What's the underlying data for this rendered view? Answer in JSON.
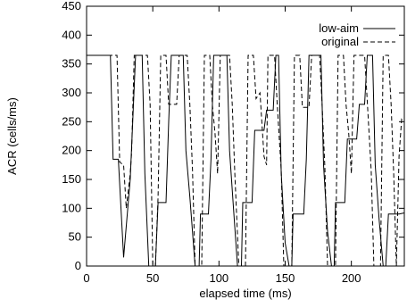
{
  "chart_data": {
    "type": "line",
    "title": "",
    "xlabel": "elapsed time (ms)",
    "ylabel": "ACR (cells/ms)",
    "xlim": [
      0,
      240
    ],
    "ylim": [
      0,
      450
    ],
    "xticks": [
      0,
      50,
      100,
      150,
      200
    ],
    "yticks": [
      0,
      50,
      100,
      150,
      200,
      250,
      300,
      350,
      400,
      450
    ],
    "grid": false,
    "legend_position": "top-right",
    "series": [
      {
        "name": "low-aim",
        "line_style": "solid",
        "color": "#000000",
        "points": [
          [
            0,
            365
          ],
          [
            18,
            365
          ],
          [
            20,
            185
          ],
          [
            24,
            185
          ],
          [
            28,
            15
          ],
          [
            33,
            150
          ],
          [
            37,
            365
          ],
          [
            42,
            365
          ],
          [
            44,
            160
          ],
          [
            47,
            0
          ],
          [
            52,
            0
          ],
          [
            54,
            110
          ],
          [
            60,
            110
          ],
          [
            62,
            250
          ],
          [
            64,
            365
          ],
          [
            73,
            365
          ],
          [
            75,
            200
          ],
          [
            78,
            120
          ],
          [
            82,
            0
          ],
          [
            85,
            0
          ],
          [
            86,
            90
          ],
          [
            92,
            90
          ],
          [
            94,
            185
          ],
          [
            96,
            365
          ],
          [
            106,
            365
          ],
          [
            108,
            200
          ],
          [
            111,
            100
          ],
          [
            114,
            0
          ],
          [
            117,
            0
          ],
          [
            118,
            110
          ],
          [
            125,
            110
          ],
          [
            127,
            235
          ],
          [
            134,
            235
          ],
          [
            136,
            270
          ],
          [
            141,
            270
          ],
          [
            143,
            365
          ],
          [
            145,
            365
          ],
          [
            147,
            160
          ],
          [
            150,
            40
          ],
          [
            153,
            0
          ],
          [
            155,
            0
          ],
          [
            156,
            90
          ],
          [
            164,
            90
          ],
          [
            166,
            185
          ],
          [
            168,
            365
          ],
          [
            177,
            365
          ],
          [
            179,
            175
          ],
          [
            182,
            60
          ],
          [
            185,
            0
          ],
          [
            187,
            0
          ],
          [
            188,
            110
          ],
          [
            195,
            110
          ],
          [
            197,
            220
          ],
          [
            204,
            220
          ],
          [
            206,
            280
          ],
          [
            210,
            280
          ],
          [
            212,
            365
          ],
          [
            216,
            365
          ],
          [
            218,
            175
          ],
          [
            221,
            80
          ],
          [
            224,
            0
          ],
          [
            226,
            0
          ],
          [
            228,
            90
          ],
          [
            236,
            90
          ],
          [
            240,
            92
          ]
        ]
      },
      {
        "name": "original",
        "line_style": "dashed",
        "color": "#000000",
        "points": [
          [
            0,
            365
          ],
          [
            23,
            365
          ],
          [
            25,
            180
          ],
          [
            28,
            175
          ],
          [
            30,
            100
          ],
          [
            33,
            160
          ],
          [
            34,
            195
          ],
          [
            36,
            365
          ],
          [
            42,
            365
          ],
          [
            46,
            365
          ],
          [
            48,
            280
          ],
          [
            50,
            0
          ],
          [
            52,
            0
          ],
          [
            54,
            120
          ],
          [
            56,
            365
          ],
          [
            60,
            365
          ],
          [
            62,
            280
          ],
          [
            68,
            280
          ],
          [
            70,
            365
          ],
          [
            76,
            365
          ],
          [
            78,
            280
          ],
          [
            80,
            165
          ],
          [
            82,
            0
          ],
          [
            87,
            0
          ],
          [
            89,
            365
          ],
          [
            93,
            365
          ],
          [
            95,
            280
          ],
          [
            97,
            230
          ],
          [
            99,
            160
          ],
          [
            101,
            365
          ],
          [
            108,
            365
          ],
          [
            110,
            280
          ],
          [
            112,
            160
          ],
          [
            115,
            0
          ],
          [
            120,
            0
          ],
          [
            122,
            365
          ],
          [
            126,
            365
          ],
          [
            128,
            290
          ],
          [
            131,
            300
          ],
          [
            134,
            190
          ],
          [
            136,
            175
          ],
          [
            137,
            365
          ],
          [
            142,
            365
          ],
          [
            144,
            280
          ],
          [
            147,
            165
          ],
          [
            149,
            0
          ],
          [
            155,
            0
          ],
          [
            157,
            365
          ],
          [
            161,
            365
          ],
          [
            163,
            275
          ],
          [
            168,
            275
          ],
          [
            170,
            365
          ],
          [
            176,
            365
          ],
          [
            178,
            275
          ],
          [
            180,
            170
          ],
          [
            182,
            0
          ],
          [
            188,
            0
          ],
          [
            190,
            365
          ],
          [
            194,
            365
          ],
          [
            196,
            280
          ],
          [
            198,
            230
          ],
          [
            200,
            160
          ],
          [
            202,
            365
          ],
          [
            210,
            365
          ],
          [
            212,
            285
          ],
          [
            215,
            165
          ],
          [
            217,
            0
          ],
          [
            222,
            0
          ],
          [
            224,
            365
          ],
          [
            228,
            365
          ],
          [
            230,
            280
          ],
          [
            232,
            160
          ],
          [
            234,
            0
          ],
          [
            236,
            190
          ],
          [
            238,
            255
          ],
          [
            240,
            255
          ]
        ]
      }
    ]
  }
}
